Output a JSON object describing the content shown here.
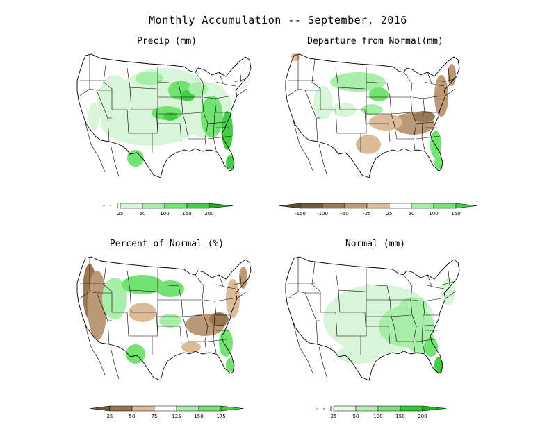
{
  "title": "Monthly Accumulation -- September, 2016",
  "colors": {
    "map_outline": "#000000",
    "green_1": "#d9f5d9",
    "green_2": "#a8eea8",
    "green_3": "#72e272",
    "green_4": "#44cc44",
    "green_5": "#22aa22",
    "brown_1": "#ddbb99",
    "brown_2": "#bb9977",
    "brown_3": "#997755",
    "brown_4": "#6f5a3a"
  },
  "panels": [
    {
      "id": "precip",
      "title": "Precip (mm)",
      "colorbar": {
        "labels": [
          "25",
          "50",
          "100",
          "150",
          "200"
        ]
      }
    },
    {
      "id": "departure",
      "title": "Departure from Normal(mm)",
      "colorbar": {
        "labels": [
          "-150",
          "-100",
          "-50",
          "-25",
          "25",
          "50",
          "100",
          "150"
        ]
      }
    },
    {
      "id": "percent",
      "title": "Percent of Normal (%)",
      "colorbar": {
        "labels": [
          "25",
          "50",
          "75",
          "125",
          "150",
          "175"
        ]
      }
    },
    {
      "id": "normal",
      "title": "Normal (mm)",
      "colorbar": {
        "labels": [
          "25",
          "50",
          "100",
          "150",
          "200"
        ]
      }
    }
  ]
}
